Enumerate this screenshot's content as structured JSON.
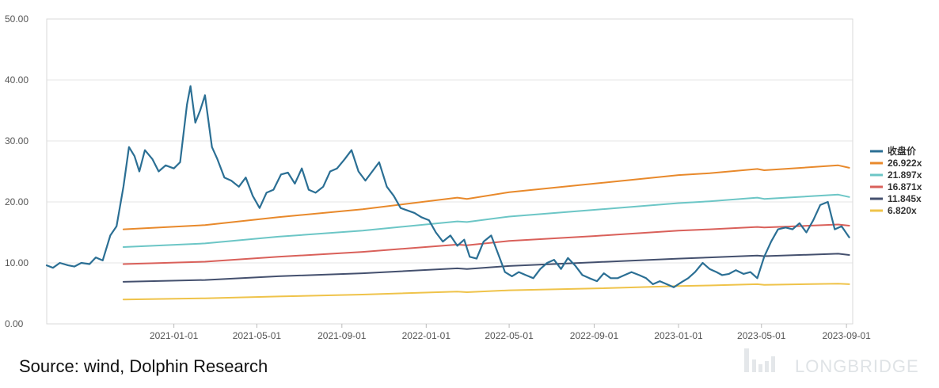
{
  "chart_data": {
    "type": "line",
    "ylim": [
      0,
      50
    ],
    "yticks": [
      "0.00",
      "10.00",
      "20.00",
      "30.00",
      "40.00",
      "50.00"
    ],
    "xticks": [
      "2021-01-01",
      "2021-05-01",
      "2021-09-01",
      "2022-01-01",
      "2022-05-01",
      "2022-09-01",
      "2023-01-01",
      "2023-05-01",
      "2023-09-01"
    ],
    "xrange": [
      "2020-07-01",
      "2023-09-10"
    ],
    "grid": "horizontal",
    "legend": "right",
    "series": [
      {
        "name": "收盘价",
        "color": "#2b6f94",
        "x": [
          "2020-07-01",
          "2020-07-10",
          "2020-07-20",
          "2020-08-01",
          "2020-08-10",
          "2020-08-20",
          "2020-09-01",
          "2020-09-10",
          "2020-09-20",
          "2020-10-01",
          "2020-10-10",
          "2020-10-20",
          "2020-10-28",
          "2020-11-05",
          "2020-11-12",
          "2020-11-20",
          "2020-12-01",
          "2020-12-10",
          "2020-12-20",
          "2021-01-01",
          "2021-01-10",
          "2021-01-20",
          "2021-01-25",
          "2021-02-01",
          "2021-02-08",
          "2021-02-15",
          "2021-02-25",
          "2021-03-05",
          "2021-03-15",
          "2021-03-25",
          "2021-04-05",
          "2021-04-15",
          "2021-04-25",
          "2021-05-05",
          "2021-05-15",
          "2021-05-25",
          "2021-06-05",
          "2021-06-15",
          "2021-06-25",
          "2021-07-05",
          "2021-07-15",
          "2021-07-25",
          "2021-08-05",
          "2021-08-15",
          "2021-08-25",
          "2021-09-05",
          "2021-09-15",
          "2021-09-25",
          "2021-10-05",
          "2021-10-15",
          "2021-10-25",
          "2021-11-05",
          "2021-11-15",
          "2021-11-25",
          "2021-12-05",
          "2021-12-15",
          "2021-12-25",
          "2022-01-05",
          "2022-01-15",
          "2022-01-25",
          "2022-02-05",
          "2022-02-15",
          "2022-02-25",
          "2022-03-05",
          "2022-03-15",
          "2022-03-25",
          "2022-04-05",
          "2022-04-15",
          "2022-04-25",
          "2022-05-05",
          "2022-05-15",
          "2022-05-25",
          "2022-06-05",
          "2022-06-15",
          "2022-06-25",
          "2022-07-05",
          "2022-07-15",
          "2022-07-25",
          "2022-08-05",
          "2022-08-15",
          "2022-08-25",
          "2022-09-05",
          "2022-09-15",
          "2022-09-25",
          "2022-10-05",
          "2022-10-15",
          "2022-10-25",
          "2022-11-05",
          "2022-11-15",
          "2022-11-25",
          "2022-12-05",
          "2022-12-15",
          "2022-12-25",
          "2023-01-05",
          "2023-01-15",
          "2023-01-25",
          "2023-02-05",
          "2023-02-15",
          "2023-02-25",
          "2023-03-05",
          "2023-03-15",
          "2023-03-25",
          "2023-04-05",
          "2023-04-15",
          "2023-04-25",
          "2023-05-05",
          "2023-05-15",
          "2023-05-25",
          "2023-06-05",
          "2023-06-15",
          "2023-06-25",
          "2023-07-05",
          "2023-07-15",
          "2023-07-25",
          "2023-08-05",
          "2023-08-15",
          "2023-08-25",
          "2023-09-05"
        ],
        "values": [
          9.6,
          9.2,
          10.0,
          9.6,
          9.4,
          10.0,
          9.8,
          10.9,
          10.4,
          14.5,
          16.0,
          22.5,
          29.0,
          27.5,
          25.0,
          28.5,
          27.0,
          25.0,
          26.0,
          25.5,
          26.5,
          36.0,
          39.0,
          33.0,
          35.0,
          37.5,
          29.0,
          27.0,
          24.0,
          23.5,
          22.5,
          24.0,
          21.0,
          19.0,
          21.5,
          22.0,
          24.5,
          24.8,
          23.0,
          25.5,
          22.0,
          21.5,
          22.5,
          25.0,
          25.5,
          27.0,
          28.5,
          25.0,
          23.5,
          25.0,
          26.5,
          22.5,
          21.0,
          19.0,
          18.6,
          18.2,
          17.5,
          17.0,
          15.0,
          13.5,
          14.5,
          12.8,
          13.8,
          11.0,
          10.7,
          13.5,
          14.5,
          11.5,
          8.5,
          7.8,
          8.5,
          8.0,
          7.5,
          9.0,
          10.0,
          10.5,
          9.0,
          10.8,
          9.5,
          8.0,
          7.5,
          7.0,
          8.3,
          7.5,
          7.5,
          8.0,
          8.5,
          8.0,
          7.5,
          6.5,
          7.0,
          6.5,
          6.0,
          6.8,
          7.5,
          8.5,
          10.0,
          9.0,
          8.5,
          8.0,
          8.2,
          8.8,
          8.2,
          8.5,
          7.5,
          11.0,
          13.5,
          15.5,
          15.8,
          15.5,
          16.5,
          15.0,
          17.0,
          19.5,
          20.0,
          15.5,
          16.0,
          14.2
        ]
      },
      {
        "name": "26.922x",
        "color": "#e8892b",
        "x": [
          "2020-10-20",
          "2021-02-15",
          "2021-06-01",
          "2021-10-01",
          "2022-02-15",
          "2022-03-01",
          "2022-05-01",
          "2022-09-01",
          "2023-01-01",
          "2023-02-15",
          "2023-04-25",
          "2023-05-05",
          "2023-08-20",
          "2023-09-05"
        ],
        "values": [
          15.5,
          16.2,
          17.5,
          18.8,
          20.7,
          20.5,
          21.6,
          23.0,
          24.4,
          24.7,
          25.4,
          25.2,
          26.0,
          25.6
        ]
      },
      {
        "name": "21.897x",
        "color": "#6cc6c6",
        "x": [
          "2020-10-20",
          "2021-02-15",
          "2021-06-01",
          "2021-10-01",
          "2022-02-15",
          "2022-03-01",
          "2022-05-01",
          "2022-09-01",
          "2023-01-01",
          "2023-02-15",
          "2023-04-25",
          "2023-05-05",
          "2023-08-20",
          "2023-09-05"
        ],
        "values": [
          12.6,
          13.2,
          14.3,
          15.3,
          16.8,
          16.7,
          17.6,
          18.7,
          19.8,
          20.1,
          20.7,
          20.5,
          21.2,
          20.8
        ]
      },
      {
        "name": "16.871x",
        "color": "#d9605a",
        "x": [
          "2020-10-20",
          "2021-02-15",
          "2021-06-01",
          "2021-10-01",
          "2022-02-15",
          "2022-03-01",
          "2022-05-01",
          "2022-09-01",
          "2023-01-01",
          "2023-02-15",
          "2023-04-25",
          "2023-05-05",
          "2023-08-20",
          "2023-09-05"
        ],
        "values": [
          9.8,
          10.2,
          11.0,
          11.8,
          13.0,
          12.9,
          13.6,
          14.4,
          15.3,
          15.5,
          15.9,
          15.8,
          16.3,
          16.1
        ]
      },
      {
        "name": "11.845x",
        "color": "#44506e",
        "x": [
          "2020-10-20",
          "2021-02-15",
          "2021-06-01",
          "2021-10-01",
          "2022-02-15",
          "2022-03-01",
          "2022-05-01",
          "2022-09-01",
          "2023-01-01",
          "2023-02-15",
          "2023-04-25",
          "2023-05-05",
          "2023-08-20",
          "2023-09-05"
        ],
        "values": [
          6.9,
          7.2,
          7.8,
          8.3,
          9.1,
          9.0,
          9.5,
          10.1,
          10.7,
          10.9,
          11.2,
          11.1,
          11.5,
          11.3
        ]
      },
      {
        "name": "6.820x",
        "color": "#efc34a",
        "x": [
          "2020-10-20",
          "2021-02-15",
          "2021-06-01",
          "2021-10-01",
          "2022-02-15",
          "2022-03-01",
          "2022-05-01",
          "2022-09-01",
          "2023-01-01",
          "2023-02-15",
          "2023-04-25",
          "2023-05-05",
          "2023-08-20",
          "2023-09-05"
        ],
        "values": [
          4.0,
          4.2,
          4.5,
          4.8,
          5.3,
          5.2,
          5.5,
          5.8,
          6.2,
          6.3,
          6.5,
          6.4,
          6.6,
          6.5
        ]
      }
    ]
  },
  "footer": {
    "source": "Source: wind, Dolphin Research",
    "watermark": "LONGBRIDGE"
  }
}
